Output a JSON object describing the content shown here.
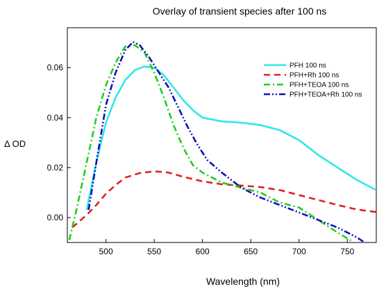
{
  "chart_data": {
    "type": "line",
    "title": "Overlay of transient species after 100 ns",
    "xlabel": "Wavelength (nm)",
    "ylabel": "Δ OD",
    "xlim": [
      460,
      780
    ],
    "ylim": [
      -0.01,
      0.076
    ],
    "x_ticks": [
      500,
      550,
      600,
      650,
      700,
      750
    ],
    "y_ticks": [
      0.0,
      0.02,
      0.04,
      0.06
    ],
    "y_tick_labels": [
      "0.00",
      "0.02",
      "0.04",
      "0.06"
    ],
    "grid": false,
    "legend_position": "top-right",
    "series": [
      {
        "name": "PFH 100 ns",
        "color": "#33e6e6",
        "dash": "solid",
        "points": [
          [
            480,
            0.003
          ],
          [
            490,
            0.022
          ],
          [
            500,
            0.038
          ],
          [
            510,
            0.048
          ],
          [
            520,
            0.055
          ],
          [
            530,
            0.059
          ],
          [
            540,
            0.0605
          ],
          [
            550,
            0.06
          ],
          [
            560,
            0.057
          ],
          [
            570,
            0.052
          ],
          [
            580,
            0.047
          ],
          [
            590,
            0.043
          ],
          [
            600,
            0.04
          ],
          [
            620,
            0.0385
          ],
          [
            640,
            0.038
          ],
          [
            660,
            0.037
          ],
          [
            680,
            0.035
          ],
          [
            700,
            0.031
          ],
          [
            720,
            0.025
          ],
          [
            740,
            0.02
          ],
          [
            760,
            0.015
          ],
          [
            780,
            0.011
          ]
        ]
      },
      {
        "name": "PFH+Rh 100 ns",
        "color": "#dd2222",
        "dash": "dashed",
        "points": [
          [
            465,
            -0.004
          ],
          [
            480,
            0.001
          ],
          [
            490,
            0.005
          ],
          [
            500,
            0.0095
          ],
          [
            510,
            0.013
          ],
          [
            520,
            0.016
          ],
          [
            535,
            0.0178
          ],
          [
            550,
            0.0185
          ],
          [
            565,
            0.018
          ],
          [
            580,
            0.0163
          ],
          [
            600,
            0.0145
          ],
          [
            620,
            0.0133
          ],
          [
            640,
            0.0128
          ],
          [
            660,
            0.0122
          ],
          [
            680,
            0.011
          ],
          [
            700,
            0.009
          ],
          [
            720,
            0.007
          ],
          [
            740,
            0.005
          ],
          [
            760,
            0.0032
          ],
          [
            780,
            0.0022
          ]
        ]
      },
      {
        "name": "PFH+TEOA 100 ns",
        "color": "#22cc22",
        "dash": "dashdot",
        "points": [
          [
            462,
            -0.009
          ],
          [
            470,
            0.004
          ],
          [
            480,
            0.022
          ],
          [
            490,
            0.04
          ],
          [
            500,
            0.053
          ],
          [
            510,
            0.062
          ],
          [
            520,
            0.0685
          ],
          [
            530,
            0.069
          ],
          [
            540,
            0.066
          ],
          [
            550,
            0.058
          ],
          [
            560,
            0.048
          ],
          [
            570,
            0.037
          ],
          [
            580,
            0.028
          ],
          [
            590,
            0.021
          ],
          [
            600,
            0.018
          ],
          [
            610,
            0.016
          ],
          [
            620,
            0.014
          ],
          [
            640,
            0.012
          ],
          [
            660,
            0.01
          ],
          [
            680,
            0.006
          ],
          [
            700,
            0.004
          ],
          [
            720,
            -0.001
          ],
          [
            740,
            -0.006
          ],
          [
            755,
            -0.0095
          ]
        ]
      },
      {
        "name": "PFH+TEOA+Rh 100 ns",
        "color": "#1111bb",
        "dash": "dashdotdot",
        "points": [
          [
            482,
            0.003
          ],
          [
            490,
            0.022
          ],
          [
            500,
            0.045
          ],
          [
            510,
            0.058
          ],
          [
            520,
            0.067
          ],
          [
            528,
            0.0703
          ],
          [
            535,
            0.069
          ],
          [
            545,
            0.064
          ],
          [
            555,
            0.058
          ],
          [
            565,
            0.052
          ],
          [
            575,
            0.044
          ],
          [
            585,
            0.036
          ],
          [
            595,
            0.029
          ],
          [
            605,
            0.023
          ],
          [
            620,
            0.018
          ],
          [
            640,
            0.012
          ],
          [
            660,
            0.008
          ],
          [
            680,
            0.005
          ],
          [
            700,
            0.002
          ],
          [
            720,
            -0.001
          ],
          [
            740,
            -0.004
          ],
          [
            760,
            -0.008
          ],
          [
            770,
            -0.0105
          ]
        ]
      }
    ]
  }
}
